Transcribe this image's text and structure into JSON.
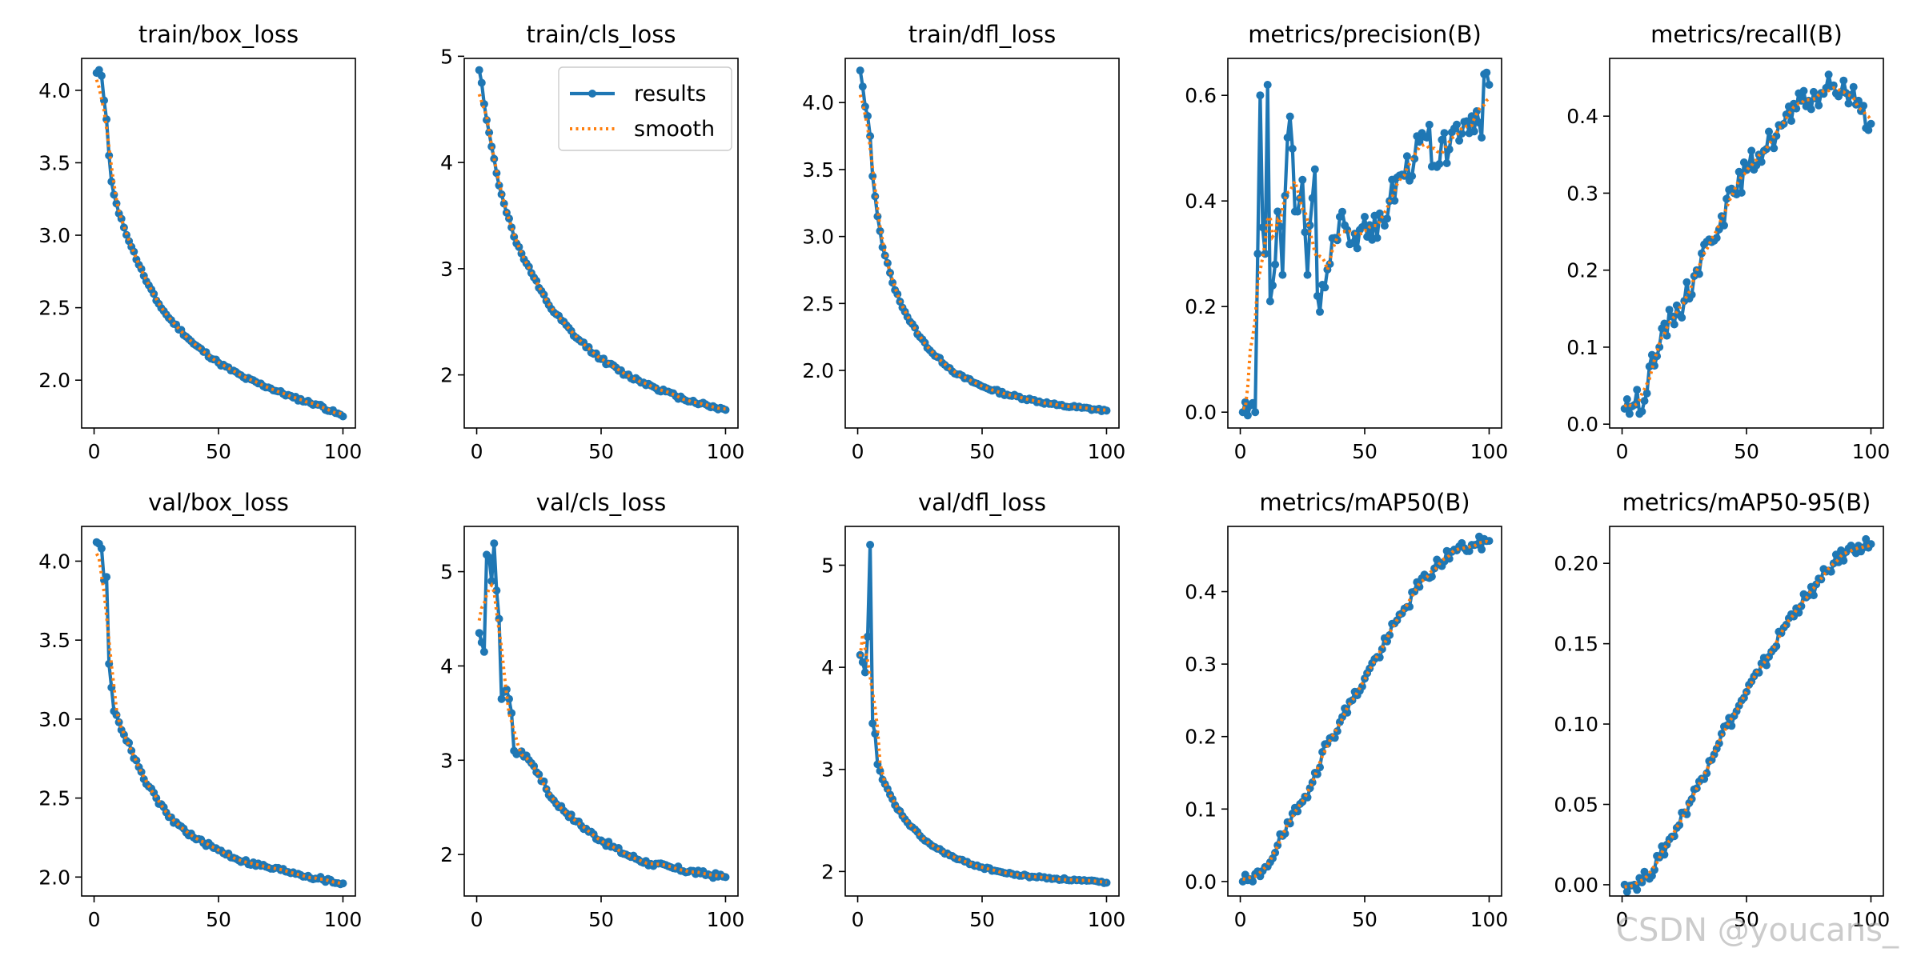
{
  "watermark": "CSDN @youcans_",
  "legend": {
    "results": "results",
    "smooth": "smooth"
  },
  "colors": {
    "results": "#1f77b4",
    "smooth": "#ff7f0e"
  },
  "chart_data": [
    {
      "type": "line",
      "title": "train/box_loss",
      "xlim": [
        -5,
        105
      ],
      "ylim": [
        1.67,
        4.22
      ],
      "xticks": [
        0,
        50,
        100
      ],
      "yticks": [
        2.0,
        2.5,
        3.0,
        3.5,
        4.0
      ],
      "ytick_fmt": 1,
      "xlabel": "",
      "ylabel": "",
      "legend": false,
      "x_range": [
        1,
        100
      ],
      "anchors": [
        [
          1,
          4.12
        ],
        [
          2,
          4.14
        ],
        [
          3,
          4.1
        ],
        [
          4,
          3.93
        ],
        [
          5,
          3.8
        ],
        [
          6,
          3.55
        ],
        [
          7,
          3.37
        ],
        [
          8,
          3.28
        ],
        [
          10,
          3.15
        ],
        [
          15,
          2.92
        ],
        [
          20,
          2.72
        ],
        [
          25,
          2.55
        ],
        [
          30,
          2.43
        ],
        [
          40,
          2.25
        ],
        [
          50,
          2.12
        ],
        [
          60,
          2.02
        ],
        [
          70,
          1.95
        ],
        [
          80,
          1.88
        ],
        [
          90,
          1.83
        ],
        [
          100,
          1.75
        ]
      ],
      "noise": 0.012,
      "seed": 11,
      "smooth_window": 7
    },
    {
      "type": "line",
      "title": "train/cls_loss",
      "xlim": [
        -5,
        105
      ],
      "ylim": [
        1.5,
        4.98
      ],
      "xticks": [
        0,
        50,
        100
      ],
      "yticks": [
        2,
        3,
        4,
        5
      ],
      "ytick_fmt": 0,
      "xlabel": "",
      "ylabel": "",
      "legend": true,
      "x_range": [
        1,
        100
      ],
      "anchors": [
        [
          1,
          4.87
        ],
        [
          2,
          4.75
        ],
        [
          3,
          4.55
        ],
        [
          4,
          4.4
        ],
        [
          6,
          4.15
        ],
        [
          8,
          3.9
        ],
        [
          10,
          3.7
        ],
        [
          15,
          3.3
        ],
        [
          20,
          3.05
        ],
        [
          25,
          2.82
        ],
        [
          30,
          2.62
        ],
        [
          40,
          2.35
        ],
        [
          50,
          2.15
        ],
        [
          60,
          2.0
        ],
        [
          70,
          1.9
        ],
        [
          80,
          1.8
        ],
        [
          90,
          1.73
        ],
        [
          100,
          1.67
        ]
      ],
      "noise": 0.02,
      "seed": 12,
      "smooth_window": 7
    },
    {
      "type": "line",
      "title": "train/dfl_loss",
      "xlim": [
        -5,
        105
      ],
      "ylim": [
        1.57,
        4.33
      ],
      "xticks": [
        0,
        50,
        100
      ],
      "yticks": [
        2.0,
        2.5,
        3.0,
        3.5,
        4.0
      ],
      "ytick_fmt": 1,
      "xlabel": "",
      "ylabel": "",
      "legend": false,
      "x_range": [
        1,
        100
      ],
      "anchors": [
        [
          1,
          4.24
        ],
        [
          2,
          4.12
        ],
        [
          3,
          3.97
        ],
        [
          4,
          3.9
        ],
        [
          5,
          3.75
        ],
        [
          6,
          3.45
        ],
        [
          7,
          3.3
        ],
        [
          8,
          3.15
        ],
        [
          10,
          2.92
        ],
        [
          15,
          2.6
        ],
        [
          20,
          2.4
        ],
        [
          25,
          2.25
        ],
        [
          30,
          2.13
        ],
        [
          40,
          1.97
        ],
        [
          50,
          1.88
        ],
        [
          60,
          1.82
        ],
        [
          70,
          1.78
        ],
        [
          80,
          1.74
        ],
        [
          90,
          1.72
        ],
        [
          100,
          1.7
        ]
      ],
      "noise": 0.012,
      "seed": 13,
      "smooth_window": 7
    },
    {
      "type": "line",
      "title": "metrics/precision(B)",
      "xlim": [
        -5,
        105
      ],
      "ylim": [
        -0.03,
        0.67
      ],
      "xticks": [
        0,
        50,
        100
      ],
      "yticks": [
        0.0,
        0.2,
        0.4,
        0.6
      ],
      "ytick_fmt": 1,
      "xlabel": "",
      "ylabel": "",
      "legend": false,
      "x_range": [
        1,
        100
      ],
      "anchors": [
        [
          1,
          0.0
        ],
        [
          6,
          0.0
        ],
        [
          7,
          0.3
        ],
        [
          8,
          0.6
        ],
        [
          9,
          0.35
        ],
        [
          10,
          0.3
        ],
        [
          11,
          0.62
        ],
        [
          12,
          0.21
        ],
        [
          13,
          0.24
        ],
        [
          15,
          0.38
        ],
        [
          17,
          0.26
        ],
        [
          19,
          0.52
        ],
        [
          20,
          0.56
        ],
        [
          22,
          0.38
        ],
        [
          25,
          0.44
        ],
        [
          27,
          0.26
        ],
        [
          30,
          0.46
        ],
        [
          31,
          0.22
        ],
        [
          32,
          0.19
        ],
        [
          35,
          0.27
        ],
        [
          38,
          0.33
        ],
        [
          40,
          0.37
        ],
        [
          45,
          0.32
        ],
        [
          50,
          0.37
        ],
        [
          55,
          0.33
        ],
        [
          60,
          0.4
        ],
        [
          65,
          0.45
        ],
        [
          70,
          0.48
        ],
        [
          75,
          0.52
        ],
        [
          80,
          0.47
        ],
        [
          85,
          0.53
        ],
        [
          90,
          0.55
        ],
        [
          95,
          0.57
        ],
        [
          97,
          0.52
        ],
        [
          98,
          0.64
        ],
        [
          100,
          0.62
        ]
      ],
      "noise": 0.035,
      "seed": 14,
      "smooth_window": 9
    },
    {
      "type": "line",
      "title": "metrics/recall(B)",
      "xlim": [
        -5,
        105
      ],
      "ylim": [
        -0.005,
        0.475
      ],
      "xticks": [
        0,
        50,
        100
      ],
      "yticks": [
        0.0,
        0.1,
        0.2,
        0.3,
        0.4
      ],
      "ytick_fmt": 1,
      "xlabel": "",
      "ylabel": "",
      "legend": false,
      "x_range": [
        1,
        100
      ],
      "anchors": [
        [
          1,
          0.02
        ],
        [
          5,
          0.025
        ],
        [
          10,
          0.04
        ],
        [
          12,
          0.09
        ],
        [
          15,
          0.1
        ],
        [
          20,
          0.14
        ],
        [
          25,
          0.16
        ],
        [
          30,
          0.2
        ],
        [
          35,
          0.24
        ],
        [
          40,
          0.27
        ],
        [
          45,
          0.3
        ],
        [
          50,
          0.33
        ],
        [
          55,
          0.35
        ],
        [
          60,
          0.37
        ],
        [
          65,
          0.39
        ],
        [
          70,
          0.41
        ],
        [
          75,
          0.42
        ],
        [
          80,
          0.43
        ],
        [
          85,
          0.44
        ],
        [
          90,
          0.43
        ],
        [
          95,
          0.42
        ],
        [
          100,
          0.39
        ]
      ],
      "noise": 0.018,
      "seed": 15,
      "smooth_window": 9
    },
    {
      "type": "line",
      "title": "val/box_loss",
      "xlim": [
        -5,
        105
      ],
      "ylim": [
        1.88,
        4.22
      ],
      "xticks": [
        0,
        50,
        100
      ],
      "yticks": [
        2.0,
        2.5,
        3.0,
        3.5,
        4.0
      ],
      "ytick_fmt": 1,
      "xlabel": "",
      "ylabel": "",
      "legend": false,
      "x_range": [
        1,
        100
      ],
      "anchors": [
        [
          1,
          4.12
        ],
        [
          2,
          4.11
        ],
        [
          3,
          4.08
        ],
        [
          4,
          3.88
        ],
        [
          5,
          3.9
        ],
        [
          6,
          3.35
        ],
        [
          7,
          3.2
        ],
        [
          8,
          3.05
        ],
        [
          10,
          2.98
        ],
        [
          15,
          2.8
        ],
        [
          20,
          2.62
        ],
        [
          25,
          2.5
        ],
        [
          30,
          2.38
        ],
        [
          40,
          2.25
        ],
        [
          50,
          2.17
        ],
        [
          60,
          2.1
        ],
        [
          70,
          2.06
        ],
        [
          80,
          2.03
        ],
        [
          90,
          1.99
        ],
        [
          100,
          1.96
        ]
      ],
      "noise": 0.015,
      "seed": 16,
      "smooth_window": 7
    },
    {
      "type": "line",
      "title": "val/cls_loss",
      "xlim": [
        -5,
        105
      ],
      "ylim": [
        1.56,
        5.48
      ],
      "xticks": [
        0,
        50,
        100
      ],
      "yticks": [
        2,
        3,
        4,
        5
      ],
      "ytick_fmt": 0,
      "xlabel": "",
      "ylabel": "",
      "legend": false,
      "x_range": [
        1,
        100
      ],
      "anchors": [
        [
          1,
          4.35
        ],
        [
          2,
          4.25
        ],
        [
          3,
          4.15
        ],
        [
          4,
          5.18
        ],
        [
          5,
          5.15
        ],
        [
          6,
          4.9
        ],
        [
          7,
          5.3
        ],
        [
          8,
          4.8
        ],
        [
          9,
          4.5
        ],
        [
          10,
          3.65
        ],
        [
          12,
          3.75
        ],
        [
          14,
          3.5
        ],
        [
          15,
          3.1
        ],
        [
          20,
          3.05
        ],
        [
          25,
          2.85
        ],
        [
          30,
          2.6
        ],
        [
          40,
          2.35
        ],
        [
          50,
          2.15
        ],
        [
          60,
          2.0
        ],
        [
          70,
          1.9
        ],
        [
          80,
          1.85
        ],
        [
          90,
          1.8
        ],
        [
          100,
          1.76
        ]
      ],
      "noise": 0.03,
      "seed": 17,
      "smooth_window": 7
    },
    {
      "type": "line",
      "title": "val/dfl_loss",
      "xlim": [
        -5,
        105
      ],
      "ylim": [
        1.76,
        5.38
      ],
      "xticks": [
        0,
        50,
        100
      ],
      "yticks": [
        2,
        3,
        4,
        5
      ],
      "ytick_fmt": 0,
      "xlabel": "",
      "ylabel": "",
      "legend": false,
      "x_range": [
        1,
        100
      ],
      "anchors": [
        [
          1,
          4.12
        ],
        [
          2,
          4.05
        ],
        [
          3,
          3.95
        ],
        [
          4,
          4.3
        ],
        [
          5,
          5.2
        ],
        [
          6,
          3.45
        ],
        [
          7,
          3.35
        ],
        [
          8,
          3.05
        ],
        [
          10,
          2.9
        ],
        [
          15,
          2.65
        ],
        [
          20,
          2.48
        ],
        [
          25,
          2.35
        ],
        [
          30,
          2.25
        ],
        [
          40,
          2.12
        ],
        [
          50,
          2.04
        ],
        [
          60,
          1.98
        ],
        [
          70,
          1.95
        ],
        [
          80,
          1.93
        ],
        [
          90,
          1.91
        ],
        [
          100,
          1.89
        ]
      ],
      "noise": 0.012,
      "seed": 18,
      "smooth_window": 7
    },
    {
      "type": "line",
      "title": "metrics/mAP50(B)",
      "xlim": [
        -5,
        105
      ],
      "ylim": [
        -0.02,
        0.49
      ],
      "xticks": [
        0,
        50,
        100
      ],
      "yticks": [
        0.0,
        0.1,
        0.2,
        0.3,
        0.4
      ],
      "ytick_fmt": 1,
      "xlabel": "",
      "ylabel": "",
      "legend": false,
      "x_range": [
        1,
        100
      ],
      "anchors": [
        [
          1,
          0.0
        ],
        [
          5,
          0.0
        ],
        [
          10,
          0.02
        ],
        [
          15,
          0.05
        ],
        [
          20,
          0.08
        ],
        [
          25,
          0.11
        ],
        [
          30,
          0.15
        ],
        [
          35,
          0.19
        ],
        [
          40,
          0.22
        ],
        [
          45,
          0.25
        ],
        [
          50,
          0.28
        ],
        [
          55,
          0.31
        ],
        [
          60,
          0.34
        ],
        [
          65,
          0.37
        ],
        [
          70,
          0.4
        ],
        [
          75,
          0.42
        ],
        [
          80,
          0.44
        ],
        [
          85,
          0.455
        ],
        [
          90,
          0.46
        ],
        [
          95,
          0.465
        ],
        [
          100,
          0.47
        ]
      ],
      "noise": 0.01,
      "seed": 19,
      "smooth_window": 7
    },
    {
      "type": "line",
      "title": "metrics/mAP50-95(B)",
      "xlim": [
        -5,
        105
      ],
      "ylim": [
        -0.007,
        0.223
      ],
      "xticks": [
        0,
        50,
        100
      ],
      "yticks": [
        0.0,
        0.05,
        0.1,
        0.15,
        0.2
      ],
      "ytick_fmt": 2,
      "xlabel": "",
      "ylabel": "",
      "legend": false,
      "x_range": [
        1,
        100
      ],
      "anchors": [
        [
          1,
          0.0
        ],
        [
          5,
          0.0
        ],
        [
          10,
          0.005
        ],
        [
          15,
          0.017
        ],
        [
          20,
          0.03
        ],
        [
          25,
          0.045
        ],
        [
          30,
          0.06
        ],
        [
          35,
          0.077
        ],
        [
          40,
          0.094
        ],
        [
          45,
          0.105
        ],
        [
          50,
          0.12
        ],
        [
          55,
          0.132
        ],
        [
          60,
          0.145
        ],
        [
          65,
          0.16
        ],
        [
          70,
          0.172
        ],
        [
          75,
          0.18
        ],
        [
          80,
          0.19
        ],
        [
          85,
          0.2
        ],
        [
          90,
          0.207
        ],
        [
          95,
          0.211
        ],
        [
          100,
          0.212
        ]
      ],
      "noise": 0.0045,
      "seed": 20,
      "smooth_window": 7
    }
  ]
}
